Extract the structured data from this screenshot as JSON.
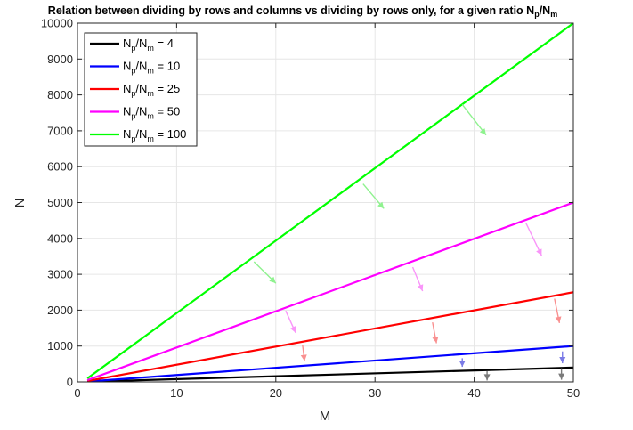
{
  "chart_data": {
    "type": "line",
    "title": {
      "main": "Relation between dividing by rows and columns vs dividing by rows only, for a given ratio N",
      "sub1": "p",
      "mid": "/N",
      "sub2": "m"
    },
    "xlabel": "M",
    "ylabel": "N",
    "xlim": [
      0,
      50
    ],
    "ylim": [
      0,
      10000
    ],
    "xticks": [
      "0",
      "10",
      "20",
      "30",
      "40",
      "50"
    ],
    "yticks": [
      "0",
      "1000",
      "2000",
      "3000",
      "4000",
      "5000",
      "6000",
      "7000",
      "8000",
      "9000",
      "10000"
    ],
    "grid": true,
    "legend_position": "top-left",
    "x": [
      1,
      50
    ],
    "series": [
      {
        "name": "Np/Nm = 4",
        "legend_value": "4",
        "color": "#000000",
        "values": [
          4,
          400
        ]
      },
      {
        "name": "Np/Nm = 10",
        "legend_value": "10",
        "color": "#0000ff",
        "values": [
          10,
          1000
        ]
      },
      {
        "name": "Np/Nm = 25",
        "legend_value": "25",
        "color": "#ff0000",
        "values": [
          25,
          2500
        ]
      },
      {
        "name": "Np/Nm = 50",
        "legend_value": "50",
        "color": "#ff00ff",
        "values": [
          50,
          5000
        ]
      },
      {
        "name": "Np/Nm = 100",
        "legend_value": "100",
        "color": "#00ff00",
        "values": [
          100,
          10000
        ]
      }
    ],
    "legend_label_parts": {
      "n": "N",
      "p": "p",
      "slash": "/N",
      "m": "m",
      "eq": " = "
    },
    "annotations": [
      {
        "type": "arrow",
        "color": "#8ff28f",
        "from": [
          17.8,
          3350
        ],
        "to": [
          20.0,
          2750
        ]
      },
      {
        "type": "arrow",
        "color": "#8ff28f",
        "from": [
          28.8,
          5520
        ],
        "to": [
          30.9,
          4830
        ]
      },
      {
        "type": "arrow",
        "color": "#8ff28f",
        "from": [
          38.8,
          7730
        ],
        "to": [
          41.2,
          6880
        ]
      },
      {
        "type": "arrow",
        "color": "#f995f9",
        "from": [
          21.0,
          1980
        ],
        "to": [
          22.0,
          1370
        ]
      },
      {
        "type": "arrow",
        "color": "#f995f9",
        "from": [
          33.8,
          3200
        ],
        "to": [
          34.8,
          2530
        ]
      },
      {
        "type": "arrow",
        "color": "#f995f9",
        "from": [
          45.2,
          4440
        ],
        "to": [
          46.8,
          3520
        ]
      },
      {
        "type": "arrow",
        "color": "#f99090",
        "from": [
          22.7,
          1020
        ],
        "to": [
          22.9,
          580
        ]
      },
      {
        "type": "arrow",
        "color": "#f99090",
        "from": [
          35.8,
          1660
        ],
        "to": [
          36.2,
          1080
        ]
      },
      {
        "type": "arrow",
        "color": "#f99090",
        "from": [
          48.1,
          2320
        ],
        "to": [
          48.6,
          1640
        ]
      },
      {
        "type": "arrow",
        "color": "#7a7ae6",
        "from": [
          38.8,
          660
        ],
        "to": [
          38.8,
          420
        ]
      },
      {
        "type": "arrow",
        "color": "#7a7ae6",
        "from": [
          48.9,
          850
        ],
        "to": [
          48.9,
          520
        ]
      },
      {
        "type": "arrow",
        "color": "#7a7a7a",
        "from": [
          41.3,
          300
        ],
        "to": [
          41.3,
          40
        ]
      },
      {
        "type": "arrow",
        "color": "#7a7a7a",
        "from": [
          48.8,
          380
        ],
        "to": [
          48.8,
          60
        ]
      }
    ]
  }
}
